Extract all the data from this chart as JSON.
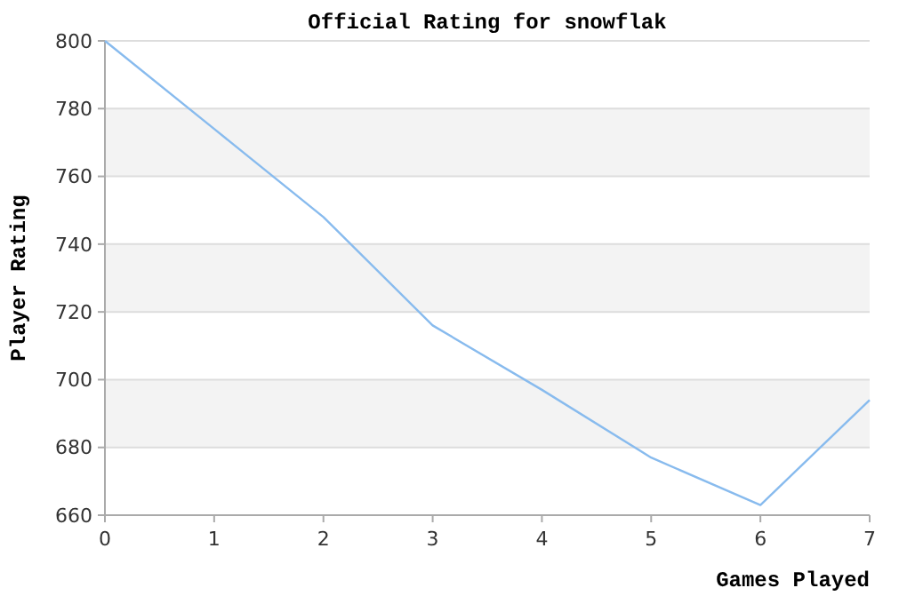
{
  "chart_data": {
    "type": "line",
    "title": "Official Rating for snowflak",
    "xlabel": "Games Played",
    "ylabel": "Player Rating",
    "x": [
      0,
      1,
      2,
      3,
      4,
      5,
      6,
      7
    ],
    "series": [
      {
        "color": "#88bbee",
        "values": [
          800,
          774,
          748,
          716,
          697,
          677,
          663,
          694
        ]
      }
    ],
    "xlim": [
      0,
      7
    ],
    "xticks": [
      0,
      1,
      2,
      3,
      4,
      5,
      6,
      7
    ],
    "ylim": [
      660,
      800
    ],
    "yticks": [
      660,
      680,
      700,
      720,
      740,
      760,
      780,
      800
    ],
    "grid": "y",
    "marker": "none",
    "line_style": "solid"
  }
}
